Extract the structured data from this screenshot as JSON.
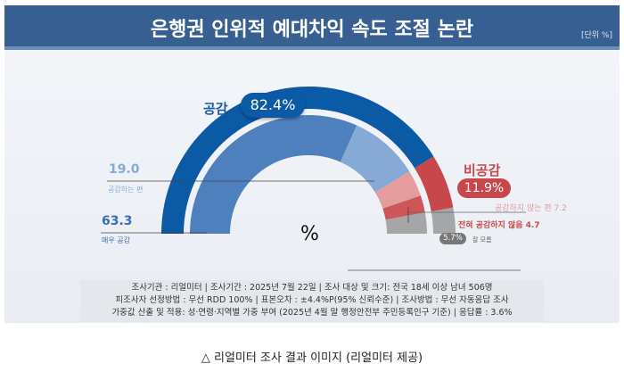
{
  "header": {
    "title": "은행권 인위적 예대차익 속도 조절 논란",
    "unit": "[단위 %]"
  },
  "chart_data": {
    "type": "pie",
    "title": "은행권 인위적 예대차익 속도 조절 논란",
    "unit": "%",
    "outer": [
      {
        "label": "공감",
        "value": 82.4,
        "display": "82.4%",
        "color": "#0b5aa6"
      },
      {
        "label": "비공감",
        "value": 11.9,
        "display": "11.9%",
        "color": "#c8474a"
      },
      {
        "label": "잘 모름",
        "value": 5.7,
        "display": "5.7%",
        "color": "#a4a6a8"
      }
    ],
    "inner": [
      {
        "label": "매우 공감",
        "value": 63.3,
        "display": "63.3",
        "color": "#4e80bd"
      },
      {
        "label": "공감하는 편",
        "value": 19.0,
        "display": "19.0",
        "color": "#86a9d6"
      },
      {
        "label": "공감하지 않는 편",
        "value": 7.2,
        "display": "공감하지 않는 편 7.2",
        "color": "#e49c9d"
      },
      {
        "label": "전혀 공감하지 않음",
        "value": 4.7,
        "display": "전혀 공감하지 않음 4.7",
        "color": "#cf5658"
      },
      {
        "label": "잘 모름",
        "value": 5.7,
        "color": "#a4a6a8"
      }
    ],
    "center_label": "%"
  },
  "colors": {
    "header": "#375f91",
    "agree": "#0b5aa6",
    "disagree": "#c8474a"
  },
  "notes": [
    "조사기관 : 리얼미터  |  조사기간 : 2025년 7월 22일 | 조사 대상 및 크기: 전국 18세 이상 남녀 506명",
    "피조사자 선정방법 : 무선 RDD 100% | 표본오차 : ±4.4%P(95% 신뢰수준) | 조사방법 : 무선 자동응답 조사",
    "가중값 산출 및 적용: 성·연령·지역별 가중 부여 (2025년 4월 말 행정안전부 주민등록인구 기준) | 응답률 : 3.6%"
  ],
  "caption": "△ 리얼미터 조사 결과 이미지 (리얼미터 제공)"
}
